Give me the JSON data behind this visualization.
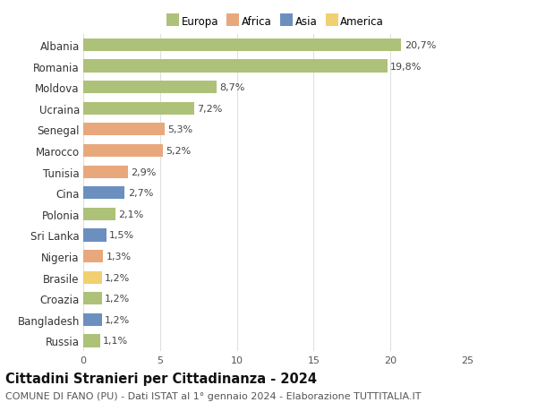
{
  "countries": [
    "Albania",
    "Romania",
    "Moldova",
    "Ucraina",
    "Senegal",
    "Marocco",
    "Tunisia",
    "Cina",
    "Polonia",
    "Sri Lanka",
    "Nigeria",
    "Brasile",
    "Croazia",
    "Bangladesh",
    "Russia"
  ],
  "values": [
    20.7,
    19.8,
    8.7,
    7.2,
    5.3,
    5.2,
    2.9,
    2.7,
    2.1,
    1.5,
    1.3,
    1.2,
    1.2,
    1.2,
    1.1
  ],
  "labels": [
    "20,7%",
    "19,8%",
    "8,7%",
    "7,2%",
    "5,3%",
    "5,2%",
    "2,9%",
    "2,7%",
    "2,1%",
    "1,5%",
    "1,3%",
    "1,2%",
    "1,2%",
    "1,2%",
    "1,1%"
  ],
  "continents": [
    "Europa",
    "Europa",
    "Europa",
    "Europa",
    "Africa",
    "Africa",
    "Africa",
    "Asia",
    "Europa",
    "Asia",
    "Africa",
    "America",
    "Europa",
    "Asia",
    "Europa"
  ],
  "colors": {
    "Europa": "#adc178",
    "Africa": "#e8a87c",
    "Asia": "#6b8fbf",
    "America": "#f0d070"
  },
  "xlim": [
    0,
    25
  ],
  "xticks": [
    0,
    5,
    10,
    15,
    20,
    25
  ],
  "title": "Cittadini Stranieri per Cittadinanza - 2024",
  "subtitle": "COMUNE DI FANO (PU) - Dati ISTAT al 1° gennaio 2024 - Elaborazione TUTTITALIA.IT",
  "background_color": "#ffffff",
  "grid_color": "#e0e0e0",
  "bar_height": 0.6,
  "label_fontsize": 8,
  "ytick_fontsize": 8.5,
  "xtick_fontsize": 8,
  "title_fontsize": 10.5,
  "subtitle_fontsize": 8
}
